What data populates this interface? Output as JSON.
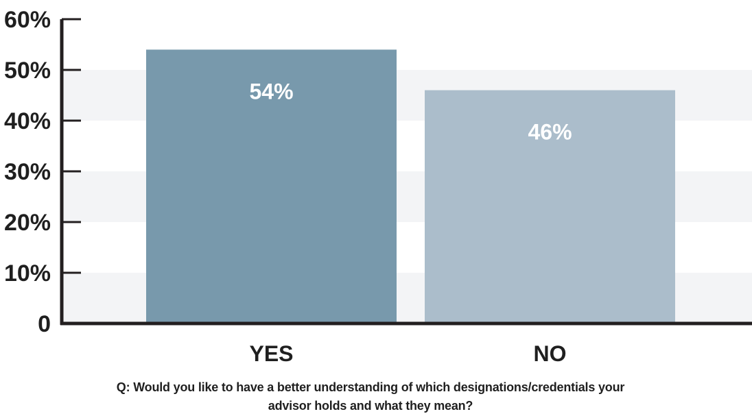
{
  "chart_data": {
    "type": "bar",
    "categories": [
      "YES",
      "NO"
    ],
    "values": [
      54,
      46
    ],
    "data_labels": [
      "54%",
      "46%"
    ],
    "ylim": [
      0,
      60
    ],
    "yticks": [
      0,
      10,
      20,
      30,
      40,
      50,
      60
    ],
    "ytick_labels": [
      "0",
      "10%",
      "20%",
      "30%",
      "40%",
      "50%",
      "60%"
    ],
    "bar_colors": [
      "#7899ac",
      "#abbdcb"
    ],
    "band_color": "#f3f4f6",
    "axis_color": "#231f20",
    "grid": false,
    "legend": "none"
  },
  "question": "Q: Would you like to have a better understanding of which designations/credentials your advisor holds and what they mean?"
}
